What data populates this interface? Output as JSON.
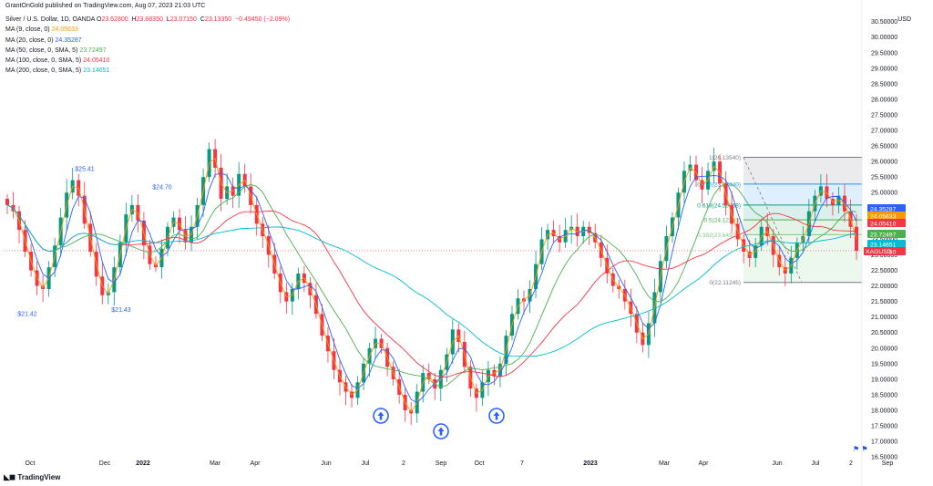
{
  "header": {
    "publisher": "GrantOnGold published on TradingView.com, Aug 07, 2023 21:03 UTC"
  },
  "legend": {
    "instrument": "Silver / U.S. Dollar, 1D, OANDA",
    "ohlc": [
      {
        "label": "O",
        "value": "23.62800",
        "color": "#f23645"
      },
      {
        "label": "H",
        "value": "23.68350",
        "color": "#f23645"
      },
      {
        "label": "L",
        "value": "23.07150",
        "color": "#f23645"
      },
      {
        "label": "C",
        "value": "23.13350",
        "color": "#f23645"
      }
    ],
    "change": "−0.49450 (−2.09%)",
    "change_color": "#f23645",
    "mas": [
      {
        "label": "MA (9, close, 0)",
        "value": "24.05633",
        "color": "#ff9800"
      },
      {
        "label": "MA (20, close, 0)",
        "value": "24.35287",
        "color": "#2962ff"
      },
      {
        "label": "MA (50, close, 0, SMA, 5)",
        "value": "23.72497",
        "color": "#4caf50"
      },
      {
        "label": "MA (100, close, 0, SMA, 5)",
        "value": "24.05410",
        "color": "#f23645"
      },
      {
        "label": "MA (200, close, 0, SMA, 5)",
        "value": "23.14651",
        "color": "#00bcd4"
      }
    ]
  },
  "axis": {
    "currency": "USD",
    "y_ticks": [
      "16.50000",
      "17.00000",
      "17.50000",
      "18.00000",
      "18.50000",
      "19.00000",
      "19.50000",
      "20.00000",
      "20.50000",
      "21.00000",
      "21.50000",
      "22.00000",
      "22.50000",
      "23.00000",
      "23.50000",
      "24.00000",
      "24.50000",
      "25.00000",
      "25.50000",
      "26.00000",
      "26.50000",
      "27.00000",
      "27.50000",
      "28.00000",
      "28.50000",
      "29.00000",
      "29.50000",
      "30.00000",
      "30.50000"
    ],
    "x_labels": [
      {
        "text": "Oct",
        "bold": false
      },
      {
        "text": "Dec",
        "bold": false
      },
      {
        "text": "2022",
        "bold": true
      },
      {
        "text": "Mar",
        "bold": false
      },
      {
        "text": "Apr",
        "bold": false
      },
      {
        "text": "Jun",
        "bold": false
      },
      {
        "text": "Jul",
        "bold": false
      },
      {
        "text": "2",
        "bold": false
      },
      {
        "text": "Sep",
        "bold": false
      },
      {
        "text": "Oct",
        "bold": false
      },
      {
        "text": "7",
        "bold": false
      },
      {
        "text": "2023",
        "bold": true
      },
      {
        "text": "Mar",
        "bold": false
      },
      {
        "text": "Apr",
        "bold": false
      },
      {
        "text": "Jun",
        "bold": false
      },
      {
        "text": "Jul",
        "bold": false
      },
      {
        "text": "2",
        "bold": false
      },
      {
        "text": "Sep",
        "bold": false
      }
    ]
  },
  "price_tags": [
    {
      "value": "24.35287",
      "color": "#2962ff"
    },
    {
      "value": "24.05633",
      "color": "#ff9800"
    },
    {
      "value": "24.05410",
      "color": "#f23645"
    },
    {
      "value": "23.72497",
      "color": "#4caf50"
    },
    {
      "value": "23.14651",
      "color": "#00bcd4"
    },
    {
      "value": "23.13350",
      "color": "#f23645"
    }
  ],
  "symbol_tag": "XAGUSD",
  "annotations": {
    "highs_lows": [
      "$25.41",
      "$24.70",
      "$21.42",
      "$21.43"
    ],
    "fib_levels": [
      "1(26.13540)",
      "0.786(25.27440)",
      "0.618(24.59868)",
      "0.5(24.12393)",
      "0.382(23.64922)",
      "0(22.11245)"
    ]
  },
  "arrows": [
    "up-arrow",
    "up-arrow",
    "up-arrow"
  ],
  "footer": {
    "brand": "TradingView"
  },
  "chart_data": {
    "type": "candlestick",
    "instrument": "Silver / U.S. Dollar",
    "ylim": [
      16.3,
      30.9
    ],
    "last_close": 23.1335,
    "fib_retracement": {
      "high": 26.1354,
      "low": 22.11245,
      "levels": [
        1,
        0.786,
        0.618,
        0.5,
        0.382,
        0
      ]
    },
    "key_points": {
      "high_1": 25.41,
      "high_2": 24.7,
      "low_1": 21.42,
      "low_2": 21.43
    },
    "close_path_samples": [
      24.6,
      24.4,
      23.8,
      23.1,
      22.5,
      22.0,
      21.9,
      22.6,
      23.3,
      24.2,
      25.0,
      25.4,
      24.9,
      24.0,
      23.1,
      22.3,
      21.7,
      21.8,
      22.6,
      23.4,
      24.3,
      24.6,
      24.1,
      23.3,
      22.7,
      22.6,
      23.2,
      23.9,
      24.2,
      23.8,
      23.4,
      23.9,
      24.6,
      25.5,
      26.4,
      25.8,
      24.8,
      25.2,
      24.9,
      25.6,
      25.2,
      24.6,
      24.0,
      23.6,
      23.0,
      22.4,
      21.8,
      21.5,
      21.9,
      22.4,
      22.1,
      21.7,
      21.1,
      20.4,
      19.9,
      19.3,
      18.9,
      18.6,
      18.4,
      18.9,
      19.5,
      20.0,
      20.3,
      20.0,
      19.4,
      19.0,
      18.5,
      18.0,
      17.9,
      18.6,
      19.2,
      19.0,
      18.7,
      19.3,
      19.8,
      20.6,
      20.2,
      19.4,
      18.7,
      18.4,
      18.9,
      19.3,
      19.1,
      19.5,
      20.4,
      21.1,
      21.6,
      21.5,
      21.9,
      22.7,
      23.5,
      23.8,
      23.6,
      23.4,
      23.8,
      23.9,
      23.6,
      23.9,
      23.7,
      23.4,
      22.9,
      22.4,
      22.0,
      21.9,
      21.5,
      21.1,
      20.5,
      20.1,
      20.8,
      21.8,
      22.8,
      23.6,
      24.2,
      25.0,
      25.7,
      25.9,
      25.4,
      25.1,
      25.7,
      26.0,
      25.3,
      24.6,
      24.0,
      23.5,
      23.1,
      22.9,
      23.3,
      23.9,
      23.6,
      23.0,
      22.6,
      22.4,
      22.9,
      23.4,
      23.6,
      24.4,
      24.9,
      25.2,
      24.8,
      24.6,
      24.9,
      24.4,
      23.9,
      23.13
    ]
  }
}
